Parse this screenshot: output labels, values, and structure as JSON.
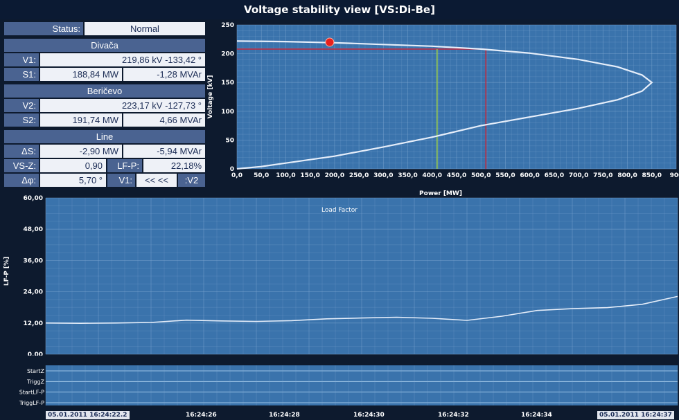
{
  "title": "Voltage stability view [VS:Di-Be]",
  "status": {
    "label": "Status:",
    "value": "Normal"
  },
  "divaca": {
    "header": "Divača",
    "v1_label": "V1:",
    "v1_value": "219,86 kV -133,42 °",
    "s1_label": "S1:",
    "s1_p": "188,84 MW",
    "s1_q": "-1,28 MVAr"
  },
  "bericevo": {
    "header": "Beričevo",
    "v2_label": "V2:",
    "v2_value": "223,17 kV -127,73 °",
    "s2_label": "S2:",
    "s2_p": "191,74 MW",
    "s2_q": "4,66 MVAr"
  },
  "line": {
    "header": "Line",
    "ds_label": "ΔS:",
    "ds_p": "-2,90 MW",
    "ds_q": "-5,94 MVAr",
    "vsz_label": "VS-Z:",
    "vsz_value": "0,90",
    "lfp_label": "LF-P:",
    "lfp_value": "22,18%",
    "dphi_label": "Δφ:",
    "dphi_value": "5,70 °",
    "v1_label": "V1:",
    "arrows": "<< <<",
    "v2_label": ":V2"
  },
  "colors": {
    "plot_bg": "#3a73ac",
    "curve": "#e6eefa",
    "marker": "#e8201c",
    "red_line": "#c0293e",
    "green_line": "#9ccc4a"
  },
  "chart_data": [
    {
      "type": "line",
      "xlabel": "Power [MW]",
      "ylabel": "Voltage [kV]",
      "xlim": [
        0,
        900
      ],
      "ylim": [
        0,
        250
      ],
      "xticks": [
        "0,0",
        "50,0",
        "100,0",
        "150,0",
        "200,0",
        "250,0",
        "300,0",
        "350,0",
        "400,0",
        "450,0",
        "500,0",
        "550,0",
        "600,0",
        "650,0",
        "700,0",
        "750,0",
        "800,0",
        "850,0",
        "900"
      ],
      "yticks": [
        "0",
        "50",
        "100",
        "150",
        "200",
        "250"
      ],
      "series": [
        {
          "x": [
            0,
            100,
            200,
            300,
            400,
            500,
            600,
            700,
            780,
            830,
            850,
            830,
            780,
            700,
            600,
            500,
            400,
            300,
            200,
            100,
            50,
            0
          ],
          "y": [
            222,
            221,
            219,
            216,
            213,
            208,
            201,
            190,
            177,
            163,
            150,
            135,
            120,
            105,
            90,
            75,
            55,
            38,
            22,
            10,
            4,
            0
          ]
        }
      ],
      "operating_point": {
        "x": 190,
        "y": 220
      },
      "markers_v": [
        {
          "x": 410,
          "color": "green"
        },
        {
          "x": 510,
          "color": "red"
        }
      ],
      "marker_h": {
        "y": 208
      }
    },
    {
      "type": "line",
      "title": "Load Factor",
      "ylabel": "LF-P [%]",
      "ylim": [
        0,
        60
      ],
      "yticks": [
        "0,00",
        "12,00",
        "24,00",
        "36,00",
        "48,00",
        "60,00"
      ],
      "series": [
        {
          "values": [
            12.0,
            11.9,
            12.0,
            12.2,
            13.1,
            12.8,
            12.6,
            12.9,
            13.6,
            13.9,
            14.2,
            13.8,
            13.0,
            14.6,
            16.8,
            17.5,
            17.9,
            19.2,
            22.2
          ]
        }
      ]
    }
  ],
  "signals": [
    "StartZ",
    "TriggZ",
    "StartLF-P",
    "TriggLF-P"
  ],
  "time_axis": {
    "start": "05.01.2011 16:24:22.2",
    "ticks": [
      "16:24:26",
      "16:24:28",
      "16:24:30",
      "16:24:32",
      "16:24:34"
    ],
    "end": "05.01.2011 16:24:37"
  }
}
